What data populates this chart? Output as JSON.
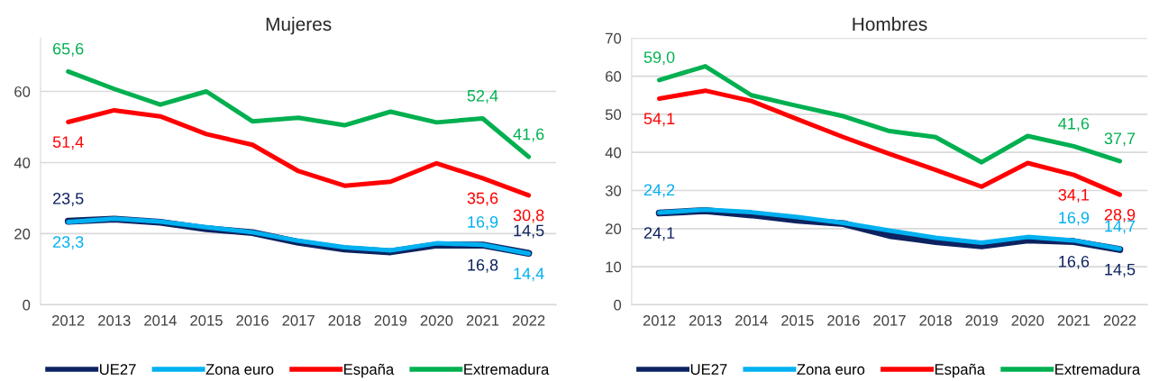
{
  "chart_data": [
    {
      "type": "line",
      "title": "Mujeres",
      "categories": [
        "2012",
        "2013",
        "2014",
        "2015",
        "2016",
        "2017",
        "2018",
        "2019",
        "2020",
        "2021",
        "2022"
      ],
      "ylim": [
        0,
        75
      ],
      "yticks": [
        0,
        20,
        40,
        60
      ],
      "grid": "y",
      "legend": "bottom",
      "marker": "none",
      "line_style": "solid",
      "series": [
        {
          "name": "UE27",
          "color": "#0d2260",
          "values": [
            23.5,
            24.1,
            23.2,
            21.4,
            20.3,
            17.6,
            15.7,
            14.9,
            16.8,
            16.8,
            14.5
          ],
          "value_labels": [
            "23,5",
            null,
            null,
            null,
            null,
            null,
            null,
            null,
            null,
            "16,8",
            "14,5"
          ]
        },
        {
          "name": "Zona euro",
          "color": "#00b0f0",
          "values": [
            23.3,
            24.2,
            23.4,
            21.8,
            20.4,
            18.0,
            16.2,
            15.3,
            17.3,
            16.9,
            14.4
          ],
          "value_labels": [
            "23,3",
            null,
            null,
            null,
            null,
            null,
            null,
            null,
            null,
            "16,9",
            "14,4"
          ]
        },
        {
          "name": "España",
          "color": "#ff0000",
          "values": [
            51.4,
            54.7,
            53.0,
            48.0,
            45.0,
            37.6,
            33.5,
            34.6,
            39.8,
            35.6,
            30.8
          ],
          "value_labels": [
            "51,4",
            null,
            null,
            null,
            null,
            null,
            null,
            null,
            null,
            "35,6",
            "30,8"
          ]
        },
        {
          "name": "Extremadura",
          "color": "#00b050",
          "values": [
            65.6,
            60.7,
            56.3,
            60.0,
            51.6,
            52.6,
            50.5,
            54.3,
            51.3,
            52.4,
            41.6
          ],
          "value_labels": [
            "65,6",
            null,
            null,
            null,
            null,
            null,
            null,
            null,
            null,
            "52,4",
            "41,6"
          ]
        }
      ]
    },
    {
      "type": "line",
      "title": "Hombres",
      "categories": [
        "2012",
        "2013",
        "2014",
        "2015",
        "2016",
        "2017",
        "2018",
        "2019",
        "2020",
        "2021",
        "2022"
      ],
      "ylim": [
        0,
        70
      ],
      "yticks": [
        0,
        10,
        20,
        30,
        40,
        50,
        60,
        70
      ],
      "grid": "y",
      "legend": "bottom",
      "marker": "none",
      "line_style": "solid",
      "series": [
        {
          "name": "UE27",
          "color": "#0d2260",
          "values": [
            24.1,
            24.7,
            23.6,
            22.2,
            21.3,
            18.2,
            16.6,
            15.5,
            17.0,
            16.6,
            14.5
          ],
          "value_labels": [
            "24,1",
            null,
            null,
            null,
            null,
            null,
            null,
            null,
            null,
            "16,6",
            "14,5"
          ]
        },
        {
          "name": "Zona euro",
          "color": "#00b0f0",
          "values": [
            24.2,
            25.0,
            24.3,
            23.0,
            21.5,
            19.5,
            17.6,
            16.3,
            17.8,
            16.9,
            14.7
          ],
          "value_labels": [
            "24,2",
            null,
            null,
            null,
            null,
            null,
            null,
            null,
            null,
            "16,9",
            "14,7"
          ]
        },
        {
          "name": "España",
          "color": "#ff0000",
          "values": [
            54.1,
            56.2,
            53.5,
            48.7,
            44.0,
            39.6,
            35.4,
            31.0,
            37.2,
            34.1,
            28.9
          ],
          "value_labels": [
            "54,1",
            null,
            null,
            null,
            null,
            null,
            null,
            null,
            null,
            "34,1",
            "28,9"
          ]
        },
        {
          "name": "Extremadura",
          "color": "#00b050",
          "values": [
            59.0,
            62.6,
            55.0,
            52.2,
            49.5,
            45.6,
            44.0,
            37.4,
            44.3,
            41.6,
            37.7
          ],
          "value_labels": [
            "59,0",
            null,
            null,
            null,
            null,
            null,
            null,
            null,
            null,
            "41,6",
            "37,7"
          ]
        }
      ]
    }
  ]
}
